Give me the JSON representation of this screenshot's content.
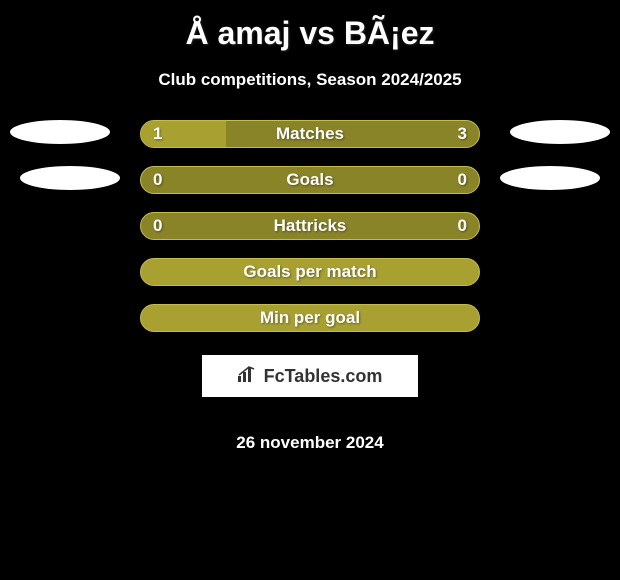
{
  "title": "Å amaj vs BÃ¡ez",
  "subtitle": "Club competitions, Season 2024/2025",
  "date": "26 november 2024",
  "logo_text": "FcTables.com",
  "colors": {
    "background": "#000000",
    "text": "#ffffff",
    "bar_olive": "#a8a132",
    "bar_olive_dark": "#8a8428",
    "bar_olive_border": "#c4bd4a",
    "avatar_bg": "#ffffff",
    "logo_bg": "#ffffff",
    "logo_text": "#333333"
  },
  "stats": [
    {
      "label": "Matches",
      "left_value": "1",
      "right_value": "3",
      "left_pct": 25,
      "fill_color": "#a8a132",
      "bg_color": "#8a8428",
      "border_color": "#c4bd4a",
      "show_values": true
    },
    {
      "label": "Goals",
      "left_value": "0",
      "right_value": "0",
      "left_pct": 0,
      "fill_color": "#a8a132",
      "bg_color": "#8a8428",
      "border_color": "#c4bd4a",
      "show_values": true
    },
    {
      "label": "Hattricks",
      "left_value": "0",
      "right_value": "0",
      "left_pct": 0,
      "fill_color": "#a8a132",
      "bg_color": "#8a8428",
      "border_color": "#c4bd4a",
      "show_values": true
    },
    {
      "label": "Goals per match",
      "left_value": "",
      "right_value": "",
      "left_pct": 0,
      "fill_color": "#a8a132",
      "bg_color": "#a8a132",
      "border_color": "#c4bd4a",
      "show_values": false
    },
    {
      "label": "Min per goal",
      "left_value": "",
      "right_value": "",
      "left_pct": 0,
      "fill_color": "#a8a132",
      "bg_color": "#a8a132",
      "border_color": "#c4bd4a",
      "show_values": false
    }
  ]
}
